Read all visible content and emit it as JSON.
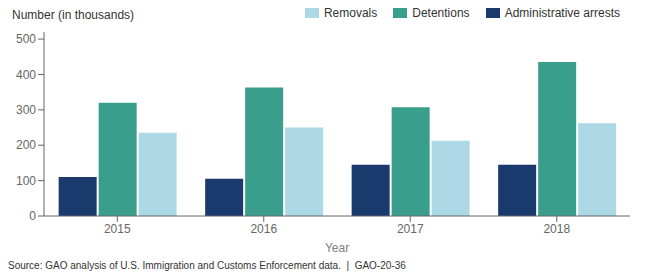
{
  "chart_data": {
    "type": "bar",
    "categories": [
      "2015",
      "2016",
      "2017",
      "2018"
    ],
    "series": [
      {
        "name": "Administrative arrests",
        "color": "#1a3a6e",
        "values": [
          110,
          105,
          145,
          145
        ]
      },
      {
        "name": "Detentions",
        "color": "#3a9e8c",
        "values": [
          320,
          363,
          307,
          435
        ]
      },
      {
        "name": "Removals",
        "color": "#add8e6",
        "values": [
          235,
          250,
          213,
          262
        ]
      }
    ],
    "xlabel": "Year",
    "ylabel": "Number (in thousands)",
    "annotations": [
      "Source: GAO analysis of U.S. Immigration and Customs Enforcement data.  |  GAO-20-36"
    ],
    "ylim": [
      0,
      520
    ],
    "yticks": [
      0,
      100,
      200,
      300,
      400,
      500
    ],
    "grid": false,
    "legend": "upper right"
  }
}
